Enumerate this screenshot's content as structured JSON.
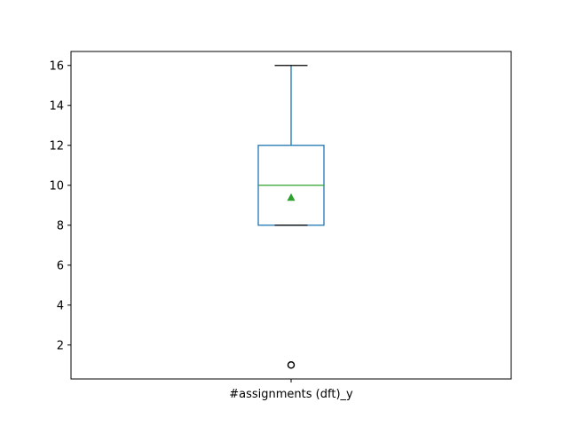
{
  "chart_data": {
    "type": "box",
    "title": "",
    "xlabel": "",
    "ylabel": "",
    "ylim": [
      0.3,
      16.7
    ],
    "yticks": [
      2,
      4,
      6,
      8,
      10,
      12,
      14,
      16
    ],
    "categories": [
      "#assignments (dft)_y"
    ],
    "boxes": [
      {
        "category": "#assignments (dft)_y",
        "whisker_low": 8,
        "q1": 8,
        "median": 10,
        "q3": 12,
        "whisker_high": 16,
        "mean": 9.4,
        "outliers": [
          1
        ]
      }
    ],
    "grid": false,
    "colors": {
      "box": "#1f77b4",
      "median": "#2ca02c",
      "mean_marker": "#2ca02c",
      "caps": "#000000",
      "outlier": "#000000"
    }
  }
}
